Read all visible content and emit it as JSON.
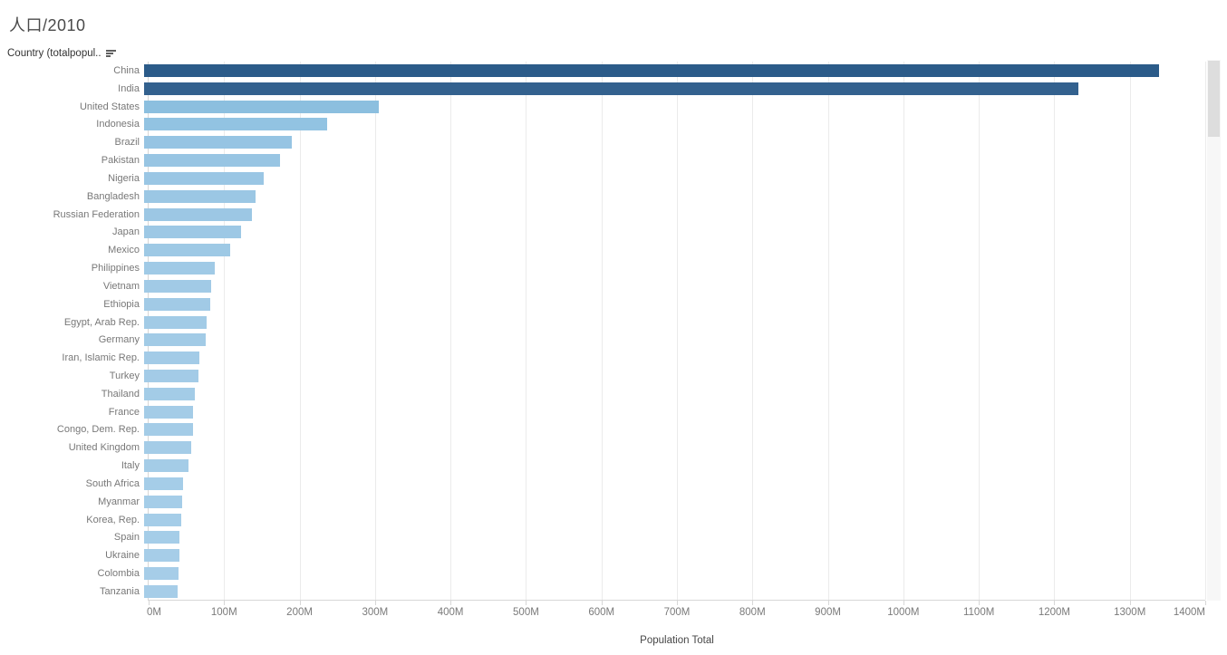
{
  "title": "人口/2010",
  "row_header": {
    "label": "Country (totalpopul..",
    "sort_icon": "sort-descending"
  },
  "chart_data": {
    "type": "bar",
    "orientation": "horizontal",
    "title": "人口/2010",
    "xlabel": "Population Total",
    "x_unit": "millions of people",
    "xlim": [
      0,
      1400
    ],
    "x_tick_interval": 100,
    "x_ticks": [
      "0M",
      "100M",
      "200M",
      "300M",
      "400M",
      "500M",
      "600M",
      "700M",
      "800M",
      "900M",
      "1000M",
      "1100M",
      "1200M",
      "1300M",
      "1400M"
    ],
    "grid": true,
    "legend": false,
    "categories": [
      "China",
      "India",
      "United States",
      "Indonesia",
      "Brazil",
      "Pakistan",
      "Nigeria",
      "Bangladesh",
      "Russian Federation",
      "Japan",
      "Mexico",
      "Philippines",
      "Vietnam",
      "Ethiopia",
      "Egypt, Arab Rep.",
      "Germany",
      "Iran, Islamic Rep.",
      "Turkey",
      "Thailand",
      "France",
      "Congo, Dem. Rep.",
      "United Kingdom",
      "Italy",
      "South Africa",
      "Myanmar",
      "Korea, Rep.",
      "Spain",
      "Ukraine",
      "Colombia",
      "Tanzania"
    ],
    "values": [
      1338,
      1232,
      309,
      241,
      195,
      179,
      158,
      147,
      142,
      128,
      114,
      93,
      88,
      87,
      82,
      81,
      73,
      72,
      67,
      65,
      64,
      62,
      59,
      51,
      50,
      49,
      47,
      46,
      45,
      44
    ],
    "bar_colors": [
      "#2B5B89",
      "#33618E",
      "#8CBFDF",
      "#92C3E2",
      "#96C4E3",
      "#98C5E3",
      "#9AC6E4",
      "#9BC7E4",
      "#9CC7E4",
      "#9DC8E5",
      "#9EC9E5",
      "#A0CAE6",
      "#A1CAE6",
      "#A1CAE6",
      "#A2CBE6",
      "#A2CBE6",
      "#A3CBE7",
      "#A3CBE7",
      "#A3CCE7",
      "#A4CCE7",
      "#A4CCE7",
      "#A4CCE7",
      "#A4CCE7",
      "#A5CDE8",
      "#A5CDE8",
      "#A5CDE8",
      "#A5CDE8",
      "#A6CDE8",
      "#A6CDE8",
      "#A6CDE8"
    ]
  },
  "colors": {
    "bar_dark": "#2B5B89",
    "bar_light": "#A6CDE8",
    "gridline": "#ebebeb",
    "axis_line": "#d7d7d7",
    "label_text": "#787878",
    "tick_text": "#7a7a7a",
    "title_text": "#4a4a4a"
  }
}
